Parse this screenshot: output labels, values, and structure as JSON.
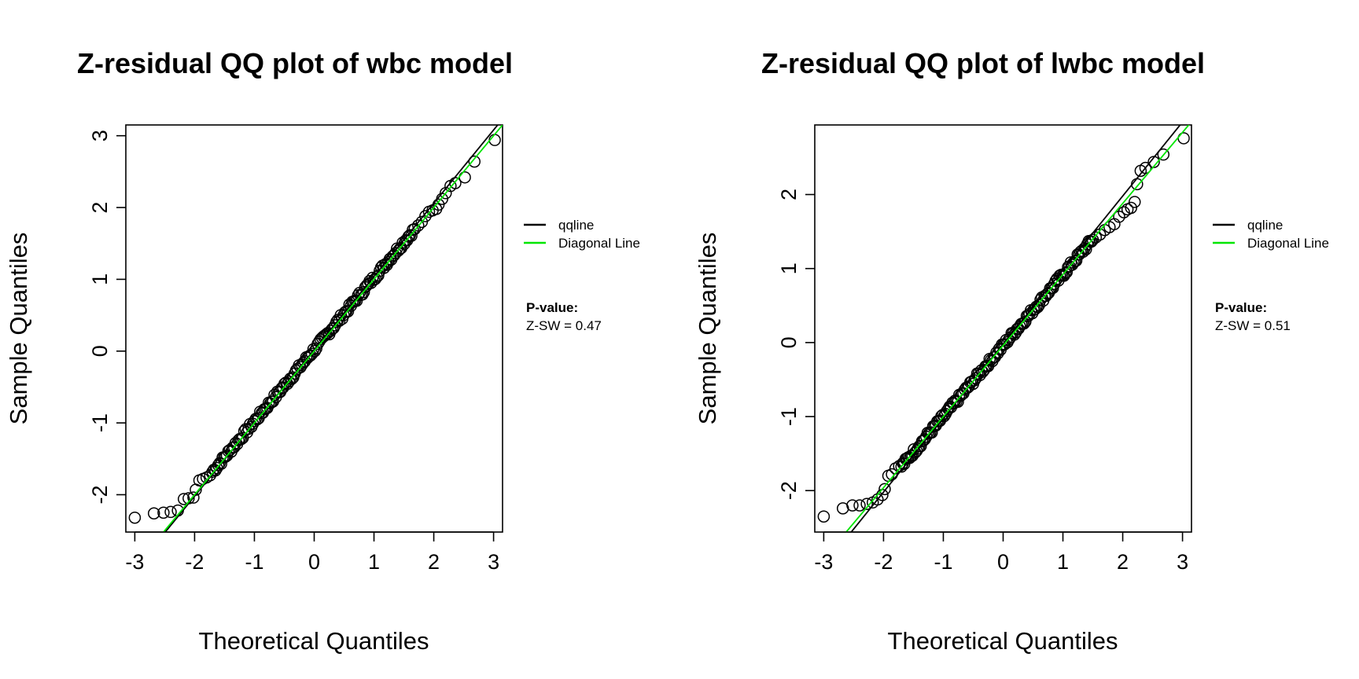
{
  "chart_data": [
    {
      "type": "scatter",
      "title": "Z-residual QQ plot of wbc model",
      "xlabel": "Theoretical Quantiles",
      "ylabel": "Sample Quantiles",
      "xlim": [
        -3.15,
        3.15
      ],
      "ylim": [
        -2.52,
        3.15
      ],
      "xticks": [
        -3,
        -2,
        -1,
        0,
        1,
        2,
        3
      ],
      "yticks": [
        -2,
        -1,
        0,
        1,
        2,
        3
      ],
      "tick_labels_x": [
        "-3",
        "-2",
        "-1",
        "0",
        "1",
        "2",
        "3"
      ],
      "tick_labels_y": [
        "-2",
        "-1",
        "0",
        "1",
        "2",
        "3"
      ],
      "grid": false,
      "points": {
        "tail_low": [
          [
            -3.0,
            -2.32
          ],
          [
            -2.68,
            -2.26
          ],
          [
            -2.52,
            -2.25
          ],
          [
            -2.4,
            -2.24
          ],
          [
            -2.28,
            -2.22
          ],
          [
            -2.18,
            -2.06
          ],
          [
            -2.1,
            -2.05
          ],
          [
            -2.02,
            -2.04
          ],
          [
            -1.98,
            -1.93
          ],
          [
            -1.92,
            -1.8
          ],
          [
            -1.86,
            -1.78
          ],
          [
            -1.8,
            -1.76
          ],
          [
            -1.74,
            -1.73
          ]
        ],
        "tail_high": [
          [
            1.68,
            1.7
          ],
          [
            1.74,
            1.75
          ],
          [
            1.8,
            1.8
          ],
          [
            1.86,
            1.88
          ],
          [
            1.92,
            1.94
          ],
          [
            1.98,
            1.96
          ],
          [
            2.04,
            1.98
          ],
          [
            2.08,
            2.04
          ],
          [
            2.14,
            2.12
          ],
          [
            2.2,
            2.2
          ],
          [
            2.28,
            2.3
          ],
          [
            2.36,
            2.34
          ],
          [
            2.52,
            2.42
          ],
          [
            2.68,
            2.64
          ],
          [
            3.02,
            2.94
          ]
        ],
        "body": {
          "x_from": -1.7,
          "x_to": 1.65,
          "count": 140,
          "intercept": 0.02,
          "slope": 1.0,
          "jitter": 0.04
        }
      },
      "lines": [
        {
          "name": "qqline",
          "color": "#000000",
          "intercept": 0.02,
          "slope": 1.02
        },
        {
          "name": "Diagonal Line",
          "color": "#00e600",
          "intercept": 0.0,
          "slope": 1.0
        }
      ],
      "legend": {
        "placement": "right",
        "entries": [
          {
            "label": "qqline",
            "color": "#000000"
          },
          {
            "label": "Diagonal Line",
            "color": "#00e600"
          }
        ]
      },
      "pvalue": {
        "heading": "P-value:",
        "text": "Z-SW = 0.47"
      }
    },
    {
      "type": "scatter",
      "title": "Z-residual QQ plot of lwbc model",
      "xlabel": "Theoretical Quantiles",
      "ylabel": "Sample Quantiles",
      "xlim": [
        -3.15,
        3.15
      ],
      "ylim": [
        -2.56,
        2.94
      ],
      "xticks": [
        -3,
        -2,
        -1,
        0,
        1,
        2,
        3
      ],
      "yticks": [
        -2,
        -1,
        0,
        1,
        2
      ],
      "tick_labels_x": [
        "-3",
        "-2",
        "-1",
        "0",
        "1",
        "2",
        "3"
      ],
      "tick_labels_y": [
        "-2",
        "-1",
        "0",
        "1",
        "2"
      ],
      "grid": false,
      "points": {
        "tail_low": [
          [
            -3.0,
            -2.35
          ],
          [
            -2.68,
            -2.24
          ],
          [
            -2.52,
            -2.2
          ],
          [
            -2.4,
            -2.2
          ],
          [
            -2.28,
            -2.18
          ],
          [
            -2.18,
            -2.16
          ],
          [
            -2.1,
            -2.12
          ],
          [
            -2.02,
            -2.06
          ],
          [
            -1.98,
            -1.98
          ],
          [
            -1.92,
            -1.8
          ],
          [
            -1.86,
            -1.78
          ],
          [
            -1.8,
            -1.7
          ],
          [
            -1.74,
            -1.67
          ]
        ],
        "tail_high": [
          [
            1.55,
            1.42
          ],
          [
            1.62,
            1.46
          ],
          [
            1.7,
            1.52
          ],
          [
            1.78,
            1.56
          ],
          [
            1.86,
            1.6
          ],
          [
            1.94,
            1.7
          ],
          [
            2.02,
            1.76
          ],
          [
            2.08,
            1.8
          ],
          [
            2.14,
            1.82
          ],
          [
            2.2,
            1.9
          ],
          [
            2.24,
            2.14
          ],
          [
            2.3,
            2.32
          ],
          [
            2.38,
            2.36
          ],
          [
            2.52,
            2.44
          ],
          [
            2.68,
            2.54
          ],
          [
            3.02,
            2.76
          ]
        ],
        "body": {
          "x_from": -1.7,
          "x_to": 1.5,
          "count": 140,
          "intercept": -0.04,
          "slope": 0.96,
          "jitter": 0.04
        }
      },
      "lines": [
        {
          "name": "qqline",
          "color": "#000000",
          "intercept": -0.02,
          "slope": 1.0
        },
        {
          "name": "Diagonal Line",
          "color": "#00e600",
          "intercept": -0.04,
          "slope": 0.96
        }
      ],
      "legend": {
        "placement": "right",
        "entries": [
          {
            "label": "qqline",
            "color": "#000000"
          },
          {
            "label": "Diagonal Line",
            "color": "#00e600"
          }
        ]
      },
      "pvalue": {
        "heading": "P-value:",
        "text": "Z-SW = 0.51"
      }
    }
  ]
}
